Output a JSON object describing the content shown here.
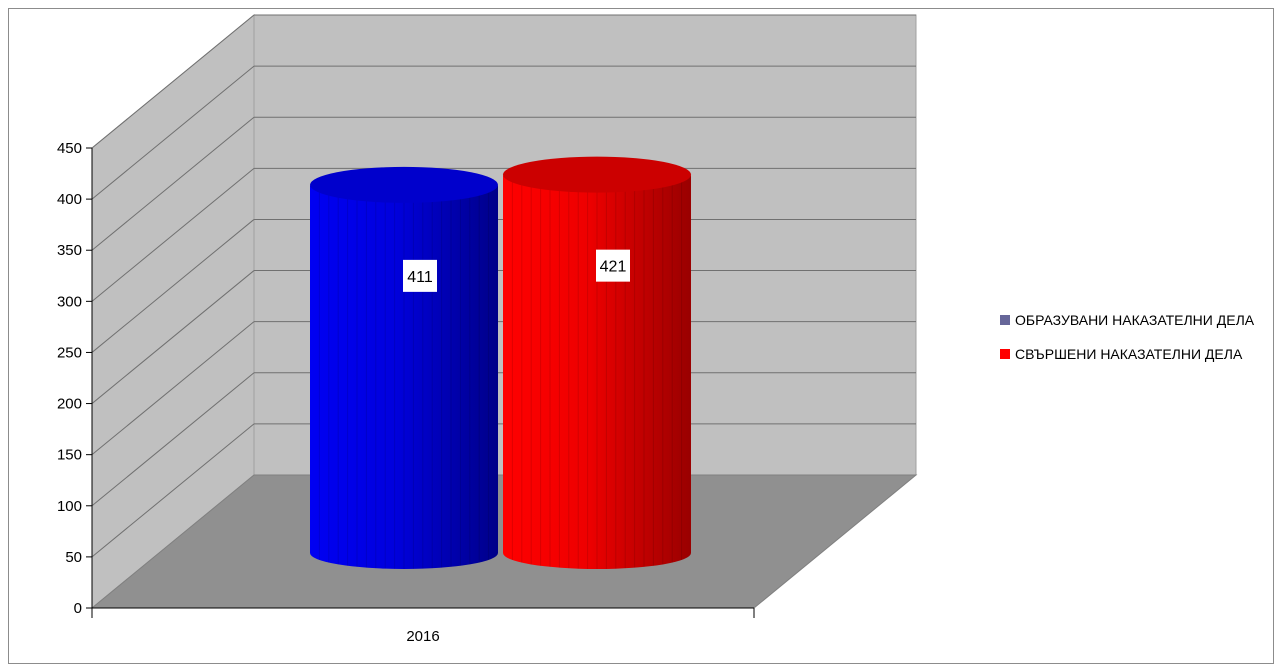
{
  "chart_data": {
    "type": "bar",
    "categories": [
      "2016"
    ],
    "series": [
      {
        "name": "ОБРАЗУВАНИ НАКАЗАТЕЛНИ ДЕЛА",
        "values": [
          411
        ],
        "color": "#0000ee"
      },
      {
        "name": "СВЪРШЕНИ НАКАЗАТЕЛНИ ДЕЛА",
        "values": [
          421
        ],
        "color": "#ff0000"
      }
    ],
    "legend_colors": [
      "#666699",
      "#ff0000"
    ],
    "data_labels": [
      "411",
      "421"
    ],
    "title": "",
    "xlabel": "",
    "ylabel": "",
    "ylim": [
      0,
      450
    ],
    "y_ticks": [
      "0",
      "50",
      "100",
      "150",
      "200",
      "250",
      "300",
      "350",
      "400",
      "450"
    ],
    "grid": true,
    "legend_position": "right",
    "style": "3d-cylinder"
  }
}
